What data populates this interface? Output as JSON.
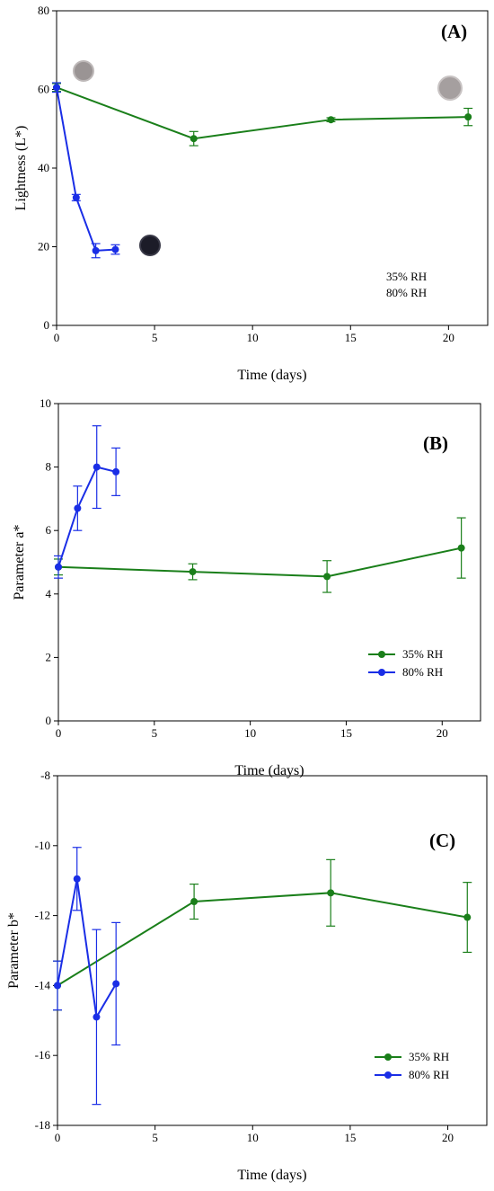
{
  "colors": {
    "green": "#1a7f1a",
    "blue": "#1a2ee6"
  },
  "chart_data": [
    {
      "type": "line",
      "panel_label": "(A)",
      "xlabel": "Time (days)",
      "ylabel": "Lightness (L*)",
      "xlim": [
        0,
        22
      ],
      "ylim": [
        0,
        80
      ],
      "xticks": [
        0,
        5,
        10,
        15,
        20
      ],
      "yticks": [
        0,
        20,
        40,
        60,
        80
      ],
      "series": [
        {
          "name": "35% RH",
          "color_key": "green",
          "x": [
            0,
            7,
            14,
            21
          ],
          "y": [
            60.5,
            47.5,
            52.3,
            53.0
          ],
          "err": [
            1.0,
            1.8,
            0.5,
            2.2
          ]
        },
        {
          "name": "80% RH",
          "color_key": "blue",
          "x": [
            0,
            1,
            2,
            3
          ],
          "y": [
            60.5,
            32.5,
            19.0,
            19.3
          ],
          "err": [
            1.2,
            0.8,
            1.8,
            1.2
          ]
        }
      ],
      "legend": {
        "position": "bottom-right",
        "show_markers": false
      }
    },
    {
      "type": "line",
      "panel_label": "(B)",
      "xlabel": "Time (days)",
      "ylabel": "Parameter a*",
      "xlim": [
        0,
        22
      ],
      "ylim": [
        0,
        10
      ],
      "xticks": [
        0,
        5,
        10,
        15,
        20
      ],
      "yticks": [
        0,
        2,
        4,
        6,
        8,
        10
      ],
      "series": [
        {
          "name": "35% RH",
          "color_key": "green",
          "x": [
            0,
            7,
            14,
            21
          ],
          "y": [
            4.85,
            4.7,
            4.55,
            5.45
          ],
          "err": [
            0.25,
            0.25,
            0.5,
            0.95
          ]
        },
        {
          "name": "80% RH",
          "color_key": "blue",
          "x": [
            0,
            1,
            2,
            3
          ],
          "y": [
            4.85,
            6.7,
            8.0,
            7.85
          ],
          "err": [
            0.35,
            0.7,
            1.3,
            0.75
          ]
        }
      ],
      "legend": {
        "position": "bottom-right",
        "show_markers": true
      }
    },
    {
      "type": "line",
      "panel_label": "(C)",
      "xlabel": "Time (days)",
      "ylabel": "Parameter b*",
      "xlim": [
        0,
        22
      ],
      "ylim": [
        -18,
        -8
      ],
      "xticks": [
        0,
        5,
        10,
        15,
        20
      ],
      "yticks": [
        -18,
        -16,
        -14,
        -12,
        -10,
        -8
      ],
      "series": [
        {
          "name": "35% RH",
          "color_key": "green",
          "x": [
            0,
            7,
            14,
            21
          ],
          "y": [
            -14.0,
            -11.6,
            -11.35,
            -12.05
          ],
          "err": [
            0.7,
            0.5,
            0.95,
            1.0
          ]
        },
        {
          "name": "80% RH",
          "color_key": "blue",
          "x": [
            0,
            1,
            2,
            3
          ],
          "y": [
            -14.0,
            -10.95,
            -14.9,
            -13.95
          ],
          "err": [
            0.7,
            0.9,
            2.5,
            1.75
          ]
        }
      ],
      "legend": {
        "position": "bottom-right",
        "show_markers": true
      }
    }
  ]
}
